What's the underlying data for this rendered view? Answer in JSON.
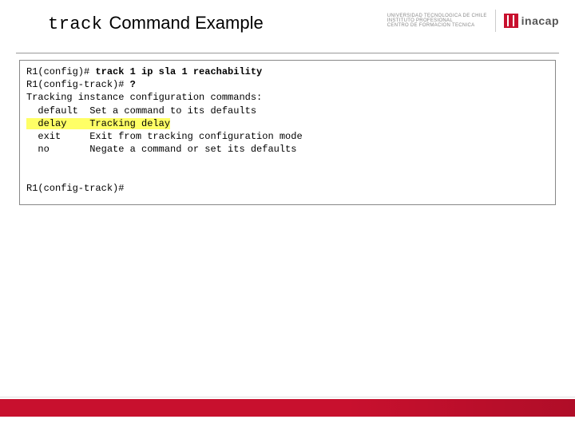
{
  "title": {
    "code": "track",
    "rest": "Command Example"
  },
  "logos": {
    "univ_lines": [
      "UNIVERSIDAD TECNOLOGICA DE CHILE",
      "INSTITUTO PROFESIONAL",
      "CENTRO DE FORMACION TECNICA"
    ],
    "inacap": "inacap"
  },
  "terminal": {
    "line1_prompt": "R1(config)# ",
    "line1_cmd": "track 1 ip sla 1 reachability",
    "line2_prompt": "R1(config-track)# ",
    "line2_cmd": "?",
    "desc_header": "Tracking instance configuration commands:",
    "rows": [
      {
        "keyword": "default",
        "desc": "Set a command to its defaults",
        "hl": false
      },
      {
        "keyword": "delay",
        "desc": "Tracking delay",
        "hl": true
      },
      {
        "keyword": "exit",
        "desc": "Exit from tracking configuration mode",
        "hl": false
      },
      {
        "keyword": "no",
        "desc": "Negate a command or set its defaults",
        "hl": false
      }
    ],
    "final_prompt": "R1(config-track)#"
  },
  "colors": {
    "brand_red": "#c8102e",
    "highlight": "#ffff66",
    "border": "#888888"
  }
}
